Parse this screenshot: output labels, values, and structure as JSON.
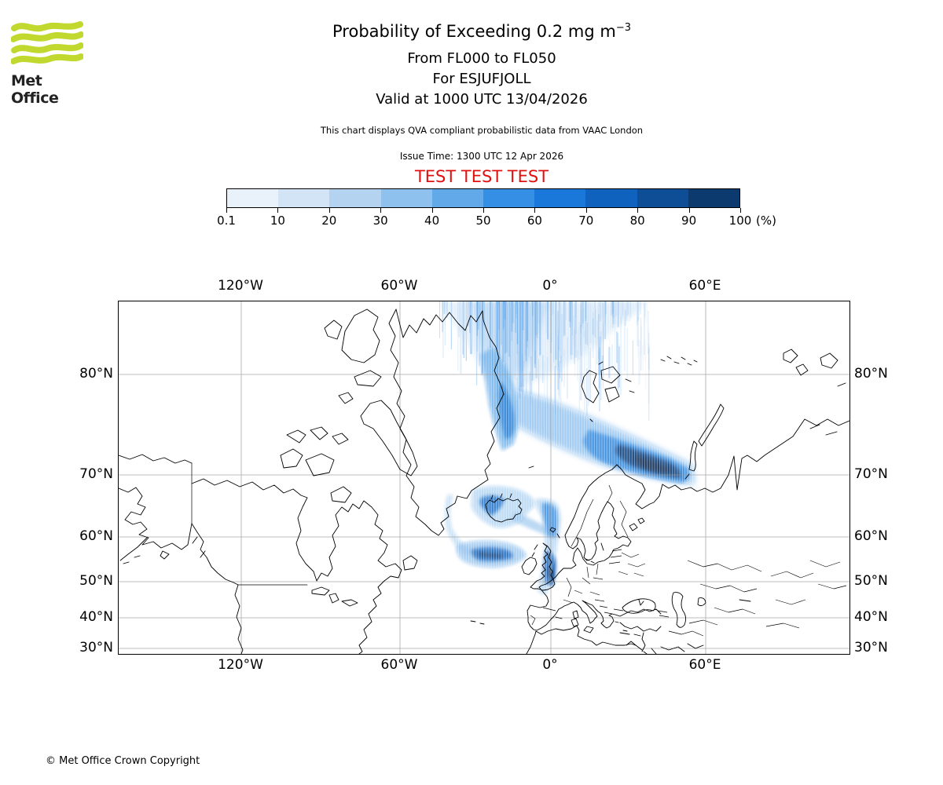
{
  "header": {
    "logo_text": "Met Office",
    "title_main": "Probability of Exceeding 0.2 mg m",
    "title_sup": "−3",
    "subtitle_fl": "From FL000 to FL050",
    "subtitle_volcano": "For ESJUFJOLL",
    "subtitle_valid": "Valid at 1000 UTC 13/04/2026",
    "description": "This chart displays QVA compliant probabilistic data from VAAC London",
    "issue_time": "Issue Time: 1300 UTC 12 Apr 2026",
    "test_banner": "TEST TEST TEST"
  },
  "colors": {
    "test_banner_red": "#e01010",
    "logo_green": "#c1d82f",
    "grid_gray": "#9a9a9a"
  },
  "colorbar": {
    "tick_labels": [
      "0.1",
      "10",
      "20",
      "30",
      "40",
      "50",
      "60",
      "70",
      "80",
      "90",
      "100"
    ],
    "unit_label": "(%)",
    "segment_colors": [
      "#e9f2fb",
      "#d3e4f6",
      "#b3d3f0",
      "#8ec1ee",
      "#62a9ea",
      "#3590e5",
      "#1a78da",
      "#0f62bd",
      "#0e4e97",
      "#0c3a6e"
    ]
  },
  "map": {
    "x_tick_labels": [
      "120°W",
      "60°W",
      "0°",
      "60°E"
    ],
    "y_tick_labels": [
      "80°N",
      "70°N",
      "60°N",
      "50°N",
      "40°N",
      "30°N"
    ]
  },
  "footer": {
    "copyright": "© Met Office Crown Copyright"
  },
  "chart_data": {
    "type": "heatmap",
    "title": "Probability of Exceeding 0.2 mg m−3",
    "flight_level_range": "FL000 to FL050",
    "volcano": "ESJUFJOLL",
    "valid_time": "1000 UTC 13/04/2026",
    "issue_time": "1300 UTC 12 Apr 2026",
    "source": "VAAC London",
    "legend": {
      "units": "%",
      "bin_edges": [
        0.1,
        10,
        20,
        30,
        40,
        50,
        60,
        70,
        80,
        90,
        100
      ],
      "colors": [
        "#e9f2fb",
        "#d3e4f6",
        "#b3d3f0",
        "#8ec1ee",
        "#62a9ea",
        "#3590e5",
        "#1a78da",
        "#0f62bd",
        "#0e4e97",
        "#0c3a6e"
      ]
    },
    "axes": {
      "lon_ticks_deg": [
        -120,
        -60,
        0,
        60
      ],
      "lat_ticks_deg": [
        80,
        70,
        60,
        50,
        40,
        30
      ],
      "grid": true
    },
    "plume_features": [
      {
        "region": "Streaked fan north of Iceland spreading poleward between ~40W and ~35E",
        "probability_pct": "1-30"
      },
      {
        "region": "Band along east Greenland coast, 70-80N",
        "probability_pct": "30-60"
      },
      {
        "region": "Plume from Greenland Sea southeast to Novaya Zemlya / Barents Sea ~70-75N",
        "probability_pct": "60-100 at core"
      },
      {
        "region": "Over and southwest of Iceland",
        "probability_pct": "40-80"
      },
      {
        "region": "Arc curving southwest of Iceland ending in elongated patch near 57N 25W",
        "probability_pct": "30-70"
      },
      {
        "region": "North Sea plume crossing Britain from ~62N to the English Channel near 0-2W",
        "probability_pct": "30-70"
      }
    ]
  }
}
